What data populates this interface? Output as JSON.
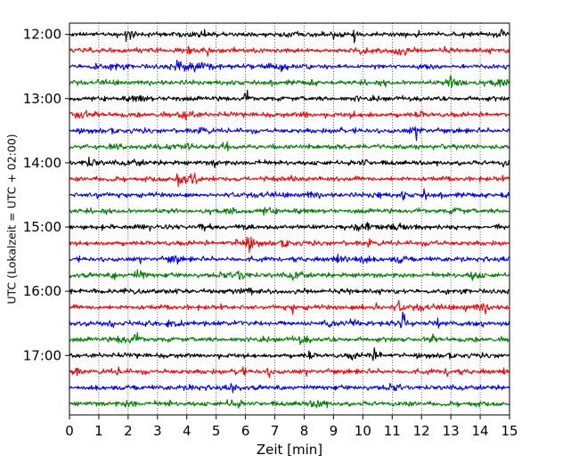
{
  "chart_data": {
    "type": "line",
    "title": "",
    "xlabel": "Zeit  [min]",
    "ylabel": "UTC (Lokalzeit = UTC + 02:00)",
    "xlim": [
      0,
      15
    ],
    "xticks": [
      0,
      1,
      2,
      3,
      4,
      5,
      6,
      7,
      8,
      9,
      10,
      11,
      12,
      13,
      14,
      15
    ],
    "xtick_labels": [
      "0",
      "1",
      "2",
      "3",
      "4",
      "5",
      "6",
      "7",
      "8",
      "9",
      "10",
      "11",
      "12",
      "13",
      "14",
      "15"
    ],
    "yticks": [
      {
        "label": "12:00",
        "row": 0
      },
      {
        "label": "13:00",
        "row": 4
      },
      {
        "label": "14:00",
        "row": 8
      },
      {
        "label": "15:00",
        "row": 12
      },
      {
        "label": "16:00",
        "row": 16
      },
      {
        "label": "17:00",
        "row": 20
      }
    ],
    "ylim_rows": [
      -0.7,
      23.7
    ],
    "trace_minutes": 15,
    "trace_start_hour": "12:00",
    "color_cycle": [
      "#000000",
      "#ff0000",
      "#0000ff",
      "#008000"
    ],
    "vertical_grid": "dotted",
    "series": [
      {
        "start": "12:00",
        "row": 0,
        "color": "#000000"
      },
      {
        "start": "12:15",
        "row": 1,
        "color": "#ff0000"
      },
      {
        "start": "12:30",
        "row": 2,
        "color": "#0000ff"
      },
      {
        "start": "12:45",
        "row": 3,
        "color": "#008000"
      },
      {
        "start": "13:00",
        "row": 4,
        "color": "#000000"
      },
      {
        "start": "13:15",
        "row": 5,
        "color": "#ff0000"
      },
      {
        "start": "13:30",
        "row": 6,
        "color": "#0000ff"
      },
      {
        "start": "13:45",
        "row": 7,
        "color": "#008000"
      },
      {
        "start": "14:00",
        "row": 8,
        "color": "#000000"
      },
      {
        "start": "14:15",
        "row": 9,
        "color": "#ff0000"
      },
      {
        "start": "14:30",
        "row": 10,
        "color": "#0000ff"
      },
      {
        "start": "14:45",
        "row": 11,
        "color": "#008000"
      },
      {
        "start": "15:00",
        "row": 12,
        "color": "#000000"
      },
      {
        "start": "15:15",
        "row": 13,
        "color": "#ff0000"
      },
      {
        "start": "15:30",
        "row": 14,
        "color": "#0000ff"
      },
      {
        "start": "15:45",
        "row": 15,
        "color": "#008000"
      },
      {
        "start": "16:00",
        "row": 16,
        "color": "#000000"
      },
      {
        "start": "16:15",
        "row": 17,
        "color": "#ff0000"
      },
      {
        "start": "16:30",
        "row": 18,
        "color": "#0000ff"
      },
      {
        "start": "16:45",
        "row": 19,
        "color": "#008000"
      },
      {
        "start": "17:00",
        "row": 20,
        "color": "#000000"
      },
      {
        "start": "17:15",
        "row": 21,
        "color": "#ff0000"
      },
      {
        "start": "17:30",
        "row": 22,
        "color": "#0000ff"
      },
      {
        "start": "17:45",
        "row": 23,
        "color": "#008000"
      }
    ]
  }
}
